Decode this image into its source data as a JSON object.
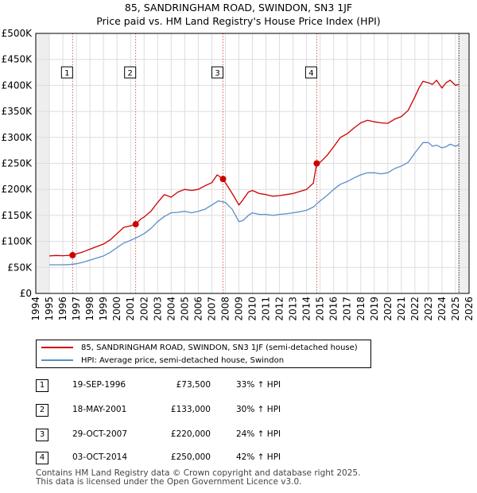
{
  "title": "85, SANDRINGHAM ROAD, SWINDON, SN3 1JF",
  "subtitle": "Price paid vs. HM Land Registry's House Price Index (HPI)",
  "chart_data": {
    "type": "line",
    "xlim": [
      1994,
      2026
    ],
    "ylim": [
      0,
      500000
    ],
    "y_ticks": [
      0,
      50000,
      100000,
      150000,
      200000,
      250000,
      300000,
      350000,
      400000,
      450000,
      500000
    ],
    "y_tick_labels": [
      "£0",
      "£50K",
      "£100K",
      "£150K",
      "£200K",
      "£250K",
      "£300K",
      "£350K",
      "£400K",
      "£450K",
      "£500K"
    ],
    "x_ticks": [
      1994,
      1995,
      1996,
      1997,
      1998,
      1999,
      2000,
      2001,
      2002,
      2003,
      2004,
      2005,
      2006,
      2007,
      2008,
      2009,
      2010,
      2011,
      2012,
      2013,
      2014,
      2015,
      2016,
      2017,
      2018,
      2019,
      2020,
      2021,
      2022,
      2023,
      2024,
      2025,
      2026
    ],
    "grid": true,
    "shaded_before_data_until": 1995.0,
    "shaded_after_from": 2025.25,
    "series": [
      {
        "name": "85, SANDRINGHAM ROAD, SWINDON, SN3 1JF (semi-detached house)",
        "color": "#cc0000",
        "x": [
          1995.0,
          1995.5,
          1996.0,
          1996.72,
          1997.0,
          1997.5,
          1998.0,
          1998.5,
          1999.0,
          1999.5,
          2000.0,
          2000.5,
          2001.0,
          2001.38,
          2001.75,
          2002.0,
          2002.5,
          2003.0,
          2003.5,
          2004.0,
          2004.5,
          2005.0,
          2005.5,
          2006.0,
          2006.5,
          2007.0,
          2007.4,
          2007.83,
          2008.2,
          2008.6,
          2009.0,
          2009.3,
          2009.7,
          2010.0,
          2010.5,
          2011.0,
          2011.5,
          2012.0,
          2012.5,
          2013.0,
          2013.5,
          2014.0,
          2014.5,
          2014.75,
          2015.0,
          2015.5,
          2016.0,
          2016.5,
          2017.0,
          2017.5,
          2018.0,
          2018.5,
          2019.0,
          2019.5,
          2020.0,
          2020.5,
          2021.0,
          2021.5,
          2022.0,
          2022.3,
          2022.6,
          2023.0,
          2023.3,
          2023.6,
          2024.0,
          2024.3,
          2024.6,
          2025.0,
          2025.25
        ],
        "values": [
          72000,
          73000,
          72500,
          73500,
          76000,
          80000,
          85000,
          90000,
          95000,
          103000,
          115000,
          127000,
          130000,
          133000,
          143000,
          147000,
          158000,
          175000,
          190000,
          185000,
          195000,
          200000,
          198000,
          200000,
          207000,
          213000,
          228000,
          220000,
          205000,
          188000,
          170000,
          180000,
          195000,
          198000,
          192000,
          190000,
          187000,
          188000,
          190000,
          192000,
          196000,
          200000,
          212000,
          250000,
          252000,
          265000,
          282000,
          300000,
          307000,
          318000,
          328000,
          333000,
          330000,
          328000,
          327000,
          335000,
          340000,
          352000,
          378000,
          395000,
          408000,
          405000,
          402000,
          410000,
          395000,
          405000,
          410000,
          400000,
          402000
        ]
      },
      {
        "name": "HPI: Average price, semi-detached house, Swindon",
        "color": "#5b8ec7",
        "x": [
          1995.0,
          1995.5,
          1996.0,
          1996.5,
          1997.0,
          1997.5,
          1998.0,
          1998.5,
          1999.0,
          1999.5,
          2000.0,
          2000.5,
          2001.0,
          2001.5,
          2002.0,
          2002.5,
          2003.0,
          2003.5,
          2004.0,
          2004.5,
          2005.0,
          2005.5,
          2006.0,
          2006.5,
          2007.0,
          2007.5,
          2008.0,
          2008.5,
          2009.0,
          2009.3,
          2009.7,
          2010.0,
          2010.5,
          2011.0,
          2011.5,
          2012.0,
          2012.5,
          2013.0,
          2013.5,
          2014.0,
          2014.5,
          2015.0,
          2015.5,
          2016.0,
          2016.5,
          2017.0,
          2017.5,
          2018.0,
          2018.5,
          2019.0,
          2019.5,
          2020.0,
          2020.5,
          2021.0,
          2021.5,
          2022.0,
          2022.3,
          2022.6,
          2023.0,
          2023.3,
          2023.6,
          2024.0,
          2024.3,
          2024.6,
          2025.0,
          2025.25
        ],
        "values": [
          55000,
          55000,
          55000,
          55500,
          57000,
          60000,
          64000,
          68000,
          72000,
          79000,
          88000,
          97000,
          102000,
          108000,
          115000,
          125000,
          138000,
          148000,
          155000,
          156000,
          158000,
          155000,
          158000,
          162000,
          170000,
          178000,
          175000,
          162000,
          138000,
          140000,
          150000,
          155000,
          152000,
          152000,
          150000,
          152000,
          153000,
          155000,
          157000,
          160000,
          166000,
          178000,
          188000,
          200000,
          210000,
          215000,
          222000,
          228000,
          232000,
          232000,
          230000,
          232000,
          240000,
          245000,
          252000,
          270000,
          280000,
          290000,
          290000,
          283000,
          285000,
          280000,
          282000,
          287000,
          283000,
          286000
        ]
      }
    ],
    "sales": [
      {
        "label": "1",
        "x": 1996.72,
        "price": 73500
      },
      {
        "label": "2",
        "x": 2001.38,
        "price": 133000
      },
      {
        "label": "3",
        "x": 2007.83,
        "price": 220000
      },
      {
        "label": "4",
        "x": 2014.75,
        "price": 250000
      }
    ],
    "sale_label_y": 425000
  },
  "legend": {
    "property_label": "85, SANDRINGHAM ROAD, SWINDON, SN3 1JF (semi-detached house)",
    "hpi_label": "HPI: Average price, semi-detached house, Swindon",
    "property_color": "#cc0000",
    "hpi_color": "#5b8ec7"
  },
  "transactions": [
    {
      "num": "1",
      "date": "19-SEP-1996",
      "price": "£73,500",
      "hpi": "33% ↑ HPI"
    },
    {
      "num": "2",
      "date": "18-MAY-2001",
      "price": "£133,000",
      "hpi": "30% ↑ HPI"
    },
    {
      "num": "3",
      "date": "29-OCT-2007",
      "price": "£220,000",
      "hpi": "24% ↑ HPI"
    },
    {
      "num": "4",
      "date": "03-OCT-2014",
      "price": "£250,000",
      "hpi": "42% ↑ HPI"
    }
  ],
  "footer": {
    "line1": "Contains HM Land Registry data © Crown copyright and database right 2025.",
    "line2": "This data is licensed under the Open Government Licence v3.0."
  }
}
